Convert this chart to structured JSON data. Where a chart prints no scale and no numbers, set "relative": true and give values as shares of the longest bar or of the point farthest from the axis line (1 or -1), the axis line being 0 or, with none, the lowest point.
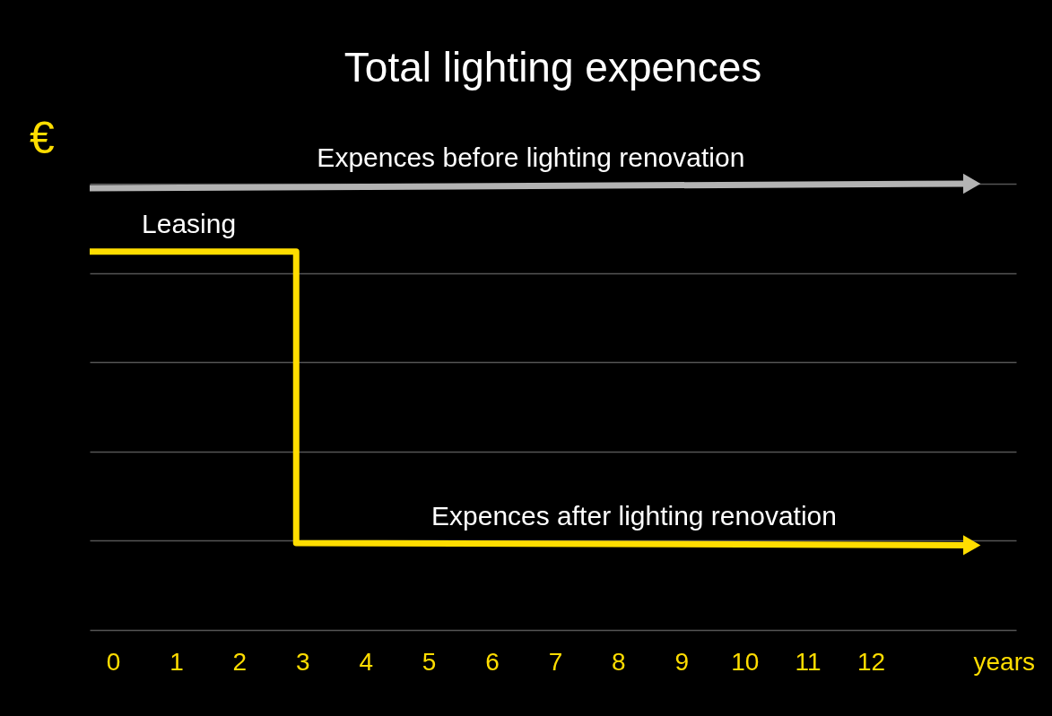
{
  "chart_data": {
    "type": "line",
    "title": "Total lighting expences",
    "ylabel": "€",
    "xlabel": "years",
    "relative": true,
    "xlim": [
      -0.37,
      14.3
    ],
    "xticks": [
      0,
      1,
      2,
      3,
      4,
      5,
      6,
      7,
      8,
      9,
      10,
      11,
      12
    ],
    "grid": "y",
    "legend": false,
    "series": [
      {
        "name": "Expences before lighting renovation",
        "color": "#b3b3b3",
        "x": [
          -0.37,
          13.6
        ],
        "values": [
          0.99,
          1
        ]
      },
      {
        "name": "Expences after lighting renovation",
        "color": "#ffdd00",
        "x": [
          -0.37,
          2.9,
          2.9,
          13.6
        ],
        "values": [
          0.848,
          0.848,
          0.195,
          0.19
        ]
      }
    ],
    "annotations": [
      {
        "text": "Leasing",
        "x": 1.2,
        "y": 0.848
      }
    ]
  }
}
